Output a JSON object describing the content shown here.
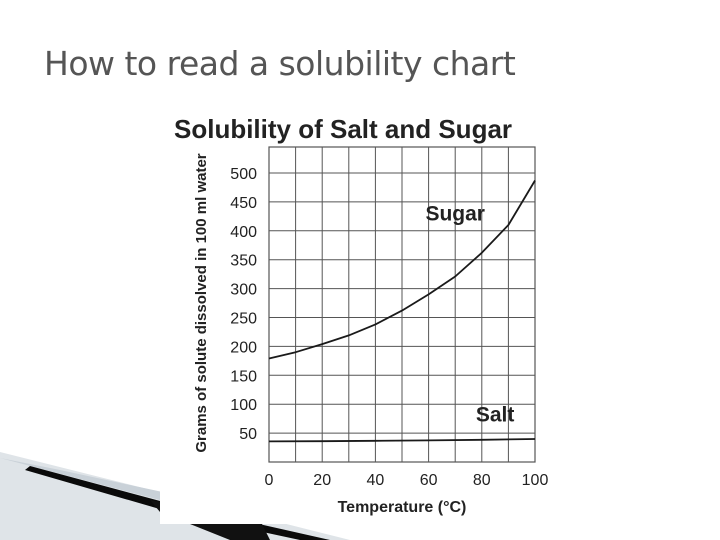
{
  "slide": {
    "title": "How to read a solubility chart"
  },
  "colors": {
    "title_text": "#555555",
    "grid": "#555555",
    "series_line": "#1a1a1a",
    "decor_dark": "#0a0a0a",
    "decor_light": "#cfd6dc"
  },
  "chart_data": {
    "type": "line",
    "title": "Solubility of Salt and Sugar",
    "xlabel": "Temperature (°C)",
    "ylabel": "Grams of solute dissolved in 100 ml water",
    "xlim": [
      0,
      100
    ],
    "ylim": [
      0,
      500
    ],
    "x_ticks": [
      0,
      20,
      40,
      60,
      80,
      100
    ],
    "y_ticks": [
      50,
      100,
      150,
      200,
      250,
      300,
      350,
      400,
      450,
      500
    ],
    "grid": true,
    "legend": "inline labels",
    "series": [
      {
        "name": "Sugar",
        "x": [
          0,
          10,
          20,
          30,
          40,
          50,
          60,
          70,
          80,
          90,
          100
        ],
        "values": [
          179,
          190,
          204,
          219,
          238,
          262,
          290,
          321,
          362,
          410,
          487
        ]
      },
      {
        "name": "Salt",
        "x": [
          0,
          20,
          40,
          60,
          80,
          100
        ],
        "values": [
          35.7,
          36,
          36.6,
          37.3,
          38.4,
          39.8
        ]
      }
    ]
  }
}
